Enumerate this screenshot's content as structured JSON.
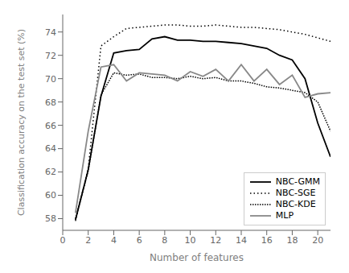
{
  "chart_data": {
    "type": "line",
    "xlabel": "Number of features",
    "ylabel": "Classification accuracy on the test set (%)",
    "x": [
      1,
      2,
      3,
      4,
      5,
      6,
      7,
      8,
      9,
      10,
      11,
      12,
      13,
      14,
      15,
      16,
      17,
      18,
      19,
      20,
      21
    ],
    "series": [
      {
        "name": "NBC-GMM",
        "color": "#000000",
        "line_style": "solid",
        "values": [
          57.9,
          62.2,
          68.5,
          72.2,
          72.4,
          72.5,
          73.4,
          73.6,
          73.3,
          73.3,
          73.2,
          73.2,
          73.1,
          73.0,
          72.8,
          72.6,
          72.0,
          71.6,
          70.0,
          66.2,
          63.3
        ]
      },
      {
        "name": "NBC-SGE",
        "color": "#000000",
        "line_style": "dotted",
        "values": [
          57.8,
          62.3,
          72.8,
          73.6,
          74.3,
          74.4,
          74.5,
          74.6,
          74.6,
          74.5,
          74.5,
          74.6,
          74.5,
          74.4,
          74.4,
          74.3,
          74.2,
          74.0,
          73.8,
          73.5,
          73.2
        ]
      },
      {
        "name": "NBC-KDE",
        "color": "#000000",
        "line_style": "densely_dotted",
        "values": [
          58.0,
          62.1,
          68.6,
          70.5,
          70.3,
          70.4,
          70.1,
          70.1,
          70.0,
          70.2,
          70.0,
          70.1,
          69.8,
          69.8,
          69.6,
          69.3,
          69.2,
          69.0,
          68.8,
          68.0,
          65.5
        ]
      },
      {
        "name": "MLP",
        "color": "#888888",
        "line_style": "solid",
        "values": [
          58.5,
          65.5,
          71.0,
          71.2,
          69.8,
          70.5,
          70.4,
          70.3,
          69.8,
          70.6,
          70.2,
          70.8,
          69.8,
          71.2,
          69.8,
          70.8,
          69.5,
          70.3,
          68.4,
          68.7,
          68.8
        ]
      }
    ],
    "xlim": [
      0,
      21
    ],
    "ylim": [
      57.0,
      75.5
    ],
    "xticks": [
      0,
      2,
      4,
      6,
      8,
      10,
      12,
      14,
      16,
      18,
      20
    ],
    "yticks": [
      58,
      60,
      62,
      64,
      66,
      68,
      70,
      72,
      74
    ],
    "grid": false,
    "legend": "lower right"
  }
}
